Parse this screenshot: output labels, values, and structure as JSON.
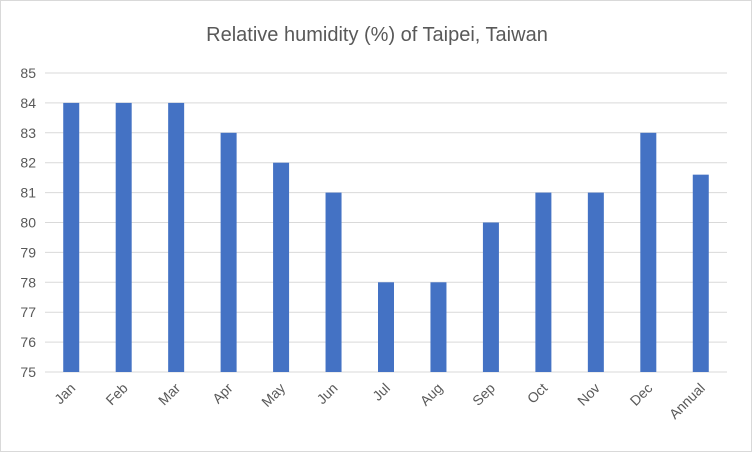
{
  "chart_data": {
    "type": "bar",
    "title": "Relative humidity (%) of Taipei, Taiwan",
    "xlabel": "",
    "ylabel": "",
    "categories": [
      "Jan",
      "Feb",
      "Mar",
      "Apr",
      "May",
      "Jun",
      "Jul",
      "Aug",
      "Sep",
      "Oct",
      "Nov",
      "Dec",
      "Annual"
    ],
    "values": [
      84,
      84,
      84,
      83,
      82,
      81,
      78,
      78,
      80,
      81,
      81,
      83,
      81.6
    ],
    "ylim": [
      75,
      85
    ],
    "yticks": [
      "75",
      "76",
      "77",
      "78",
      "79",
      "80",
      "81",
      "82",
      "83",
      "84",
      "85"
    ],
    "grid": true,
    "legend": "none",
    "bar_color": "#4472c4",
    "grid_color": "#d9d9d9",
    "text_color": "#595959"
  }
}
